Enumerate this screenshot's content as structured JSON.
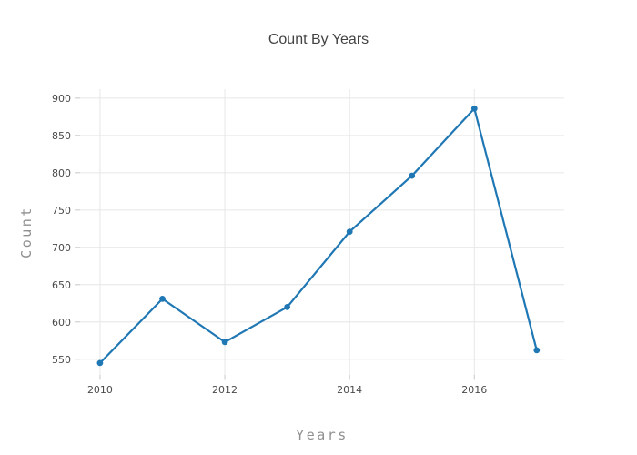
{
  "chart_data": {
    "type": "line",
    "title": "Count By Years",
    "xlabel": "Years",
    "ylabel": "Count",
    "x": [
      2010,
      2011,
      2012,
      2013,
      2014,
      2015,
      2016,
      2017
    ],
    "values": [
      545,
      631,
      573,
      620,
      721,
      796,
      886,
      562
    ],
    "x_ticks": [
      2010,
      2012,
      2014,
      2016
    ],
    "y_ticks": [
      550,
      600,
      650,
      700,
      750,
      800,
      850,
      900
    ],
    "x_range": [
      2009.68,
      2017.44
    ],
    "y_range": [
      529,
      912
    ],
    "grid": true,
    "legend": false,
    "marker": "circle",
    "colors": {
      "line": "#1f77b4",
      "marker": "#1f77b4",
      "grid": "#e6e6e6",
      "tick": "#c8c8c8",
      "tick_label": "#4a4a4a",
      "axis_title": "#909090",
      "title": "#434343",
      "background": "#ffffff"
    }
  }
}
